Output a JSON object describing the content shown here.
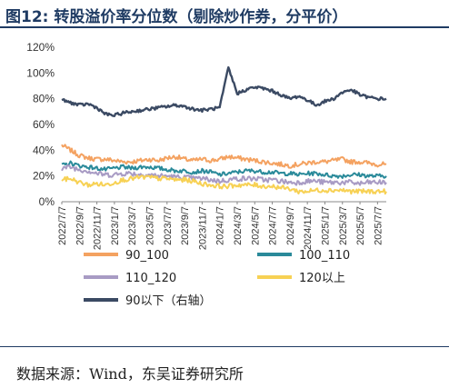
{
  "header": {
    "figure_label": "图12:",
    "title": "转股溢价率分位数（剔除炒作券，分平价）"
  },
  "footer": {
    "source": "数据来源：Wind，东吴证券研究所"
  },
  "chart_data": {
    "type": "line",
    "yaxis": {
      "ylim": [
        0,
        1.2
      ],
      "ticks": [
        "0%",
        "20%",
        "40%",
        "60%",
        "80%",
        "100%",
        "120%"
      ],
      "tick_values": [
        0,
        0.2,
        0.4,
        0.6,
        0.8,
        1.0,
        1.2
      ]
    },
    "xaxis": {
      "range": [
        "2022-07",
        "2025-08"
      ],
      "tick_labels": [
        "2022/7/7",
        "2022/9/7",
        "2022/11/7",
        "2023/1/7",
        "2023/3/7",
        "2023/5/7",
        "2023/7/7",
        "2023/9/7",
        "2023/11/7",
        "2024/1/7",
        "2024/3/7",
        "2024/5/7",
        "2024/7/7",
        "2024/9/7",
        "2024/11/7",
        "2025/1/7",
        "2025/3/7",
        "2025/5/7",
        "2025/7/7"
      ]
    },
    "months": [
      "2022-07",
      "2022-08",
      "2022-09",
      "2022-10",
      "2022-11",
      "2022-12",
      "2023-01",
      "2023-02",
      "2023-03",
      "2023-04",
      "2023-05",
      "2023-06",
      "2023-07",
      "2023-08",
      "2023-09",
      "2023-10",
      "2023-11",
      "2023-12",
      "2024-01",
      "2024-02",
      "2024-03",
      "2024-04",
      "2024-05",
      "2024-06",
      "2024-07",
      "2024-08",
      "2024-09",
      "2024-10",
      "2024-11",
      "2024-12",
      "2025-01",
      "2025-02",
      "2025-03",
      "2025-04",
      "2025-05",
      "2025-06",
      "2025-07",
      "2025-08"
    ],
    "series": [
      {
        "name": "90_100",
        "color": "#f4a261",
        "values": [
          0.44,
          0.4,
          0.36,
          0.34,
          0.33,
          0.33,
          0.32,
          0.31,
          0.31,
          0.32,
          0.33,
          0.32,
          0.34,
          0.35,
          0.33,
          0.32,
          0.33,
          0.32,
          0.33,
          0.35,
          0.34,
          0.33,
          0.32,
          0.31,
          0.3,
          0.29,
          0.28,
          0.29,
          0.3,
          0.31,
          0.31,
          0.32,
          0.33,
          0.31,
          0.31,
          0.3,
          0.29,
          0.29
        ]
      },
      {
        "name": "100_110",
        "color": "#2a8a9a",
        "values": [
          0.28,
          0.3,
          0.28,
          0.27,
          0.26,
          0.25,
          0.26,
          0.27,
          0.26,
          0.27,
          0.27,
          0.26,
          0.25,
          0.24,
          0.24,
          0.23,
          0.24,
          0.23,
          0.21,
          0.22,
          0.23,
          0.24,
          0.24,
          0.23,
          0.23,
          0.22,
          0.22,
          0.21,
          0.22,
          0.22,
          0.21,
          0.2,
          0.2,
          0.21,
          0.21,
          0.2,
          0.2,
          0.2
        ]
      },
      {
        "name": "110_120",
        "color": "#a89bc4",
        "values": [
          0.26,
          0.27,
          0.25,
          0.24,
          0.22,
          0.21,
          0.21,
          0.22,
          0.22,
          0.21,
          0.21,
          0.2,
          0.2,
          0.19,
          0.19,
          0.18,
          0.18,
          0.17,
          0.16,
          0.17,
          0.18,
          0.18,
          0.18,
          0.17,
          0.17,
          0.16,
          0.15,
          0.15,
          0.16,
          0.16,
          0.15,
          0.15,
          0.15,
          0.15,
          0.14,
          0.15,
          0.15,
          0.15
        ]
      },
      {
        "name": "120以上",
        "color": "#f7d154",
        "values": [
          0.17,
          0.18,
          0.15,
          0.13,
          0.14,
          0.13,
          0.15,
          0.17,
          0.18,
          0.19,
          0.19,
          0.18,
          0.18,
          0.17,
          0.17,
          0.16,
          0.14,
          0.13,
          0.12,
          0.12,
          0.13,
          0.13,
          0.13,
          0.12,
          0.12,
          0.11,
          0.1,
          0.08,
          0.08,
          0.09,
          0.09,
          0.09,
          0.09,
          0.08,
          0.08,
          0.08,
          0.08,
          0.08
        ]
      },
      {
        "name": "90以下（右轴）",
        "color": "#3b4a63",
        "values": [
          0.79,
          0.77,
          0.75,
          0.76,
          0.73,
          0.68,
          0.67,
          0.69,
          0.7,
          0.71,
          0.72,
          0.73,
          0.74,
          0.75,
          0.74,
          0.72,
          0.71,
          0.72,
          0.73,
          1.04,
          0.84,
          0.87,
          0.89,
          0.88,
          0.86,
          0.83,
          0.8,
          0.82,
          0.79,
          0.75,
          0.78,
          0.8,
          0.85,
          0.87,
          0.83,
          0.81,
          0.8,
          0.8
        ]
      }
    ],
    "legend_placement": "bottom",
    "grid": false
  }
}
